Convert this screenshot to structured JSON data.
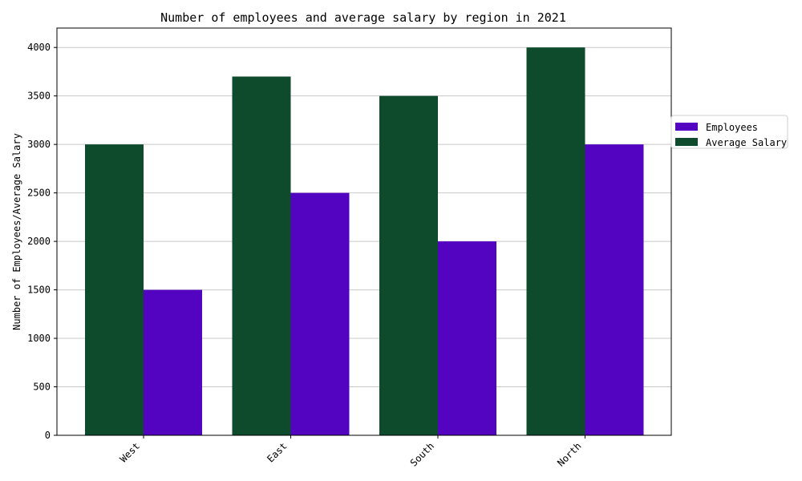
{
  "chart_data": {
    "type": "bar",
    "title": "Number of employees and average salary by region in 2021",
    "xlabel": "",
    "ylabel": "Number of Employees/Average Salary",
    "categories": [
      "West",
      "East",
      "South",
      "North"
    ],
    "series": [
      {
        "name": "Average Salary",
        "values": [
          3000,
          3700,
          3500,
          4000
        ],
        "color": "#0d4b2c"
      },
      {
        "name": "Employees",
        "values": [
          1500,
          2500,
          2000,
          3000
        ],
        "color": "#5204c0"
      }
    ],
    "legend_order": [
      "Employees",
      "Average Salary"
    ],
    "legend_position": "right",
    "ylim": [
      0,
      4200
    ],
    "yticks": [
      0,
      500,
      1000,
      1500,
      2000,
      2500,
      3000,
      3500,
      4000
    ],
    "ytick_labels": [
      "0",
      "500",
      "1000",
      "1500",
      "2000",
      "2500",
      "3000",
      "3500",
      "4000"
    ],
    "grid": true
  }
}
